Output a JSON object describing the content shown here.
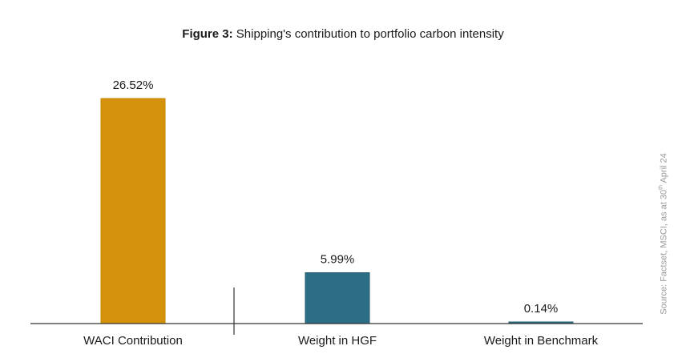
{
  "title": {
    "label": "Figure 3:",
    "text": "Shipping's contribution to portfolio carbon intensity"
  },
  "source": {
    "prefix": "Source: Factset, MSCI, as at 30",
    "sup": "th",
    "suffix": " April 24"
  },
  "colors": {
    "waci": "#D4910A",
    "hgf": "#2B6E85",
    "benchmark": "#2B6E85",
    "axis": "#333333"
  },
  "chart_data": {
    "type": "bar",
    "title": "Figure 3: Shipping's contribution to portfolio carbon intensity",
    "categories": [
      "WACI Contribution",
      "Weight in HGF",
      "Weight in Benchmark"
    ],
    "values": [
      26.52,
      5.99,
      0.14
    ],
    "value_labels": [
      "26.52%",
      "5.99%",
      "0.14%"
    ],
    "unit": "%",
    "ylim": [
      0,
      30
    ],
    "grid": false,
    "legend": "none"
  }
}
